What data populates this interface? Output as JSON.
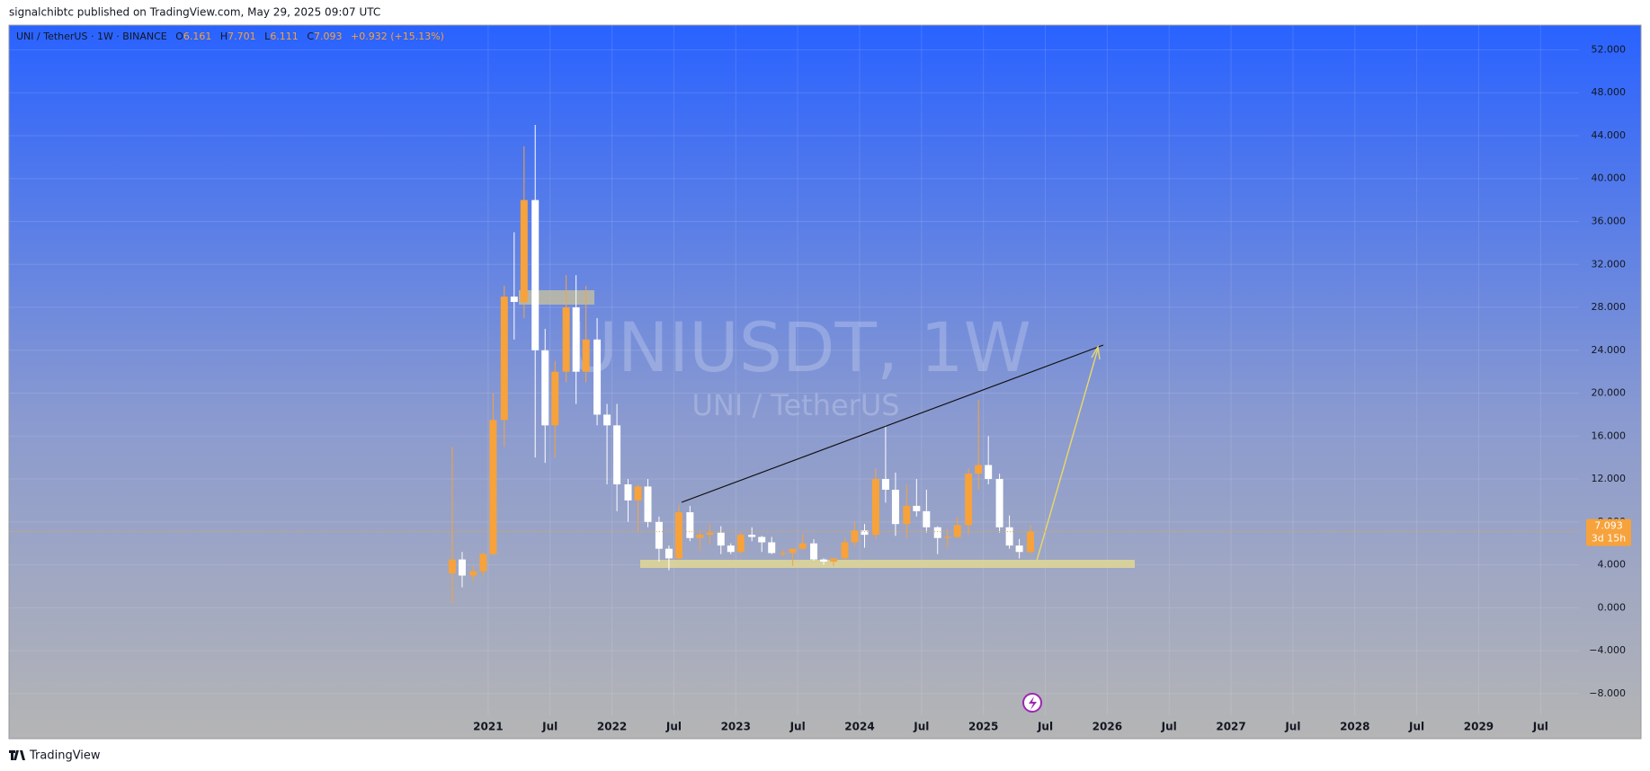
{
  "header": {
    "published": "signalchibtc published on TradingView.com, May 29, 2025 09:07 UTC"
  },
  "legend": {
    "symbol": "UNI / TetherUS · 1W · BINANCE",
    "ohlc": [
      {
        "label": "O",
        "value": "6.161"
      },
      {
        "label": "H",
        "value": "7.701"
      },
      {
        "label": "L",
        "value": "6.111"
      },
      {
        "label": "C",
        "value": "7.093"
      }
    ],
    "change": "+0.932 (+15.13%)"
  },
  "watermark": {
    "ticker": "UNIUSDT, 1W",
    "name": "UNI / TetherUS"
  },
  "price_label": {
    "value": 7.093,
    "label": "7.093",
    "countdown": "3d 15h"
  },
  "footer": {
    "brand": "TradingView"
  },
  "chart_data": {
    "type": "candlestick",
    "up_color": "#f7a23b",
    "down_color": "#ffffff",
    "grid": true,
    "x": [
      2020.71,
      2020.79,
      2020.88,
      2020.96,
      2021.04,
      2021.13,
      2021.21,
      2021.29,
      2021.38,
      2021.46,
      2021.54,
      2021.63,
      2021.71,
      2021.79,
      2021.88,
      2021.96,
      2022.04,
      2022.13,
      2022.21,
      2022.29,
      2022.38,
      2022.46,
      2022.54,
      2022.63,
      2022.71,
      2022.79,
      2022.88,
      2022.96,
      2023.04,
      2023.13,
      2023.21,
      2023.29,
      2023.38,
      2023.46,
      2023.54,
      2023.63,
      2023.71,
      2023.79,
      2023.88,
      2023.96,
      2024.04,
      2024.13,
      2024.21,
      2024.29,
      2024.38,
      2024.46,
      2024.54,
      2024.63,
      2024.71,
      2024.79,
      2024.88,
      2024.96,
      2025.04,
      2025.13,
      2025.21,
      2025.29,
      2025.38
    ],
    "open": [
      3.2,
      4.5,
      3.0,
      3.4,
      5.0,
      17.5,
      29,
      28.5,
      38,
      24,
      17,
      22,
      28,
      22,
      25,
      18,
      17,
      11.5,
      10,
      11.3,
      8,
      5.5,
      4.6,
      8.9,
      6.5,
      6.8,
      7,
      5.8,
      5.2,
      6.8,
      6.6,
      6.1,
      5.1,
      5.1,
      5.5,
      6,
      4.5,
      4.3,
      4.6,
      6.1,
      7.2,
      6.8,
      12,
      11,
      7.8,
      9.5,
      9,
      7.5,
      6.5,
      6.6,
      7.7,
      12.5,
      13.3,
      12,
      7.5,
      5.8,
      5.2
    ],
    "high": [
      15,
      5.2,
      3.9,
      5.2,
      20,
      30,
      35,
      43,
      45,
      26,
      23,
      31,
      31,
      30,
      27,
      19,
      19,
      12,
      11.5,
      12,
      8.5,
      5.8,
      9.6,
      9.5,
      7.2,
      7.8,
      7.6,
      6,
      7,
      7.5,
      6.7,
      6.6,
      5.4,
      5.5,
      6.9,
      6.4,
      4.6,
      4.6,
      6.5,
      8,
      7.8,
      13,
      17,
      12.6,
      11.5,
      12,
      11,
      7.6,
      7.3,
      8.5,
      13,
      19.4,
      16,
      12.5,
      8.6,
      6.4,
      7.7
    ],
    "low": [
      0.4,
      1.9,
      2.5,
      2.9,
      4.9,
      15,
      25,
      27,
      14,
      13.5,
      14,
      21,
      19,
      21,
      17,
      11.5,
      9,
      8,
      7,
      7.5,
      4.3,
      3.5,
      4.5,
      6.2,
      5.3,
      5.9,
      5,
      5,
      5,
      6.2,
      5.2,
      5,
      4.8,
      3.9,
      5.4,
      4.4,
      4,
      3.9,
      4.5,
      5.7,
      5.6,
      6.4,
      9.8,
      6.7,
      6.5,
      8.5,
      7,
      5,
      5.6,
      6.5,
      6.8,
      11,
      11.5,
      7,
      5.5,
      4.6,
      5
    ],
    "close": [
      4.5,
      3.0,
      3.4,
      5.0,
      17.5,
      29,
      28.5,
      38,
      24,
      17,
      22,
      28,
      22,
      25,
      18,
      17,
      11.5,
      10,
      11.3,
      8,
      5.5,
      4.6,
      8.9,
      6.5,
      6.8,
      7,
      5.8,
      5.2,
      6.8,
      6.6,
      6.1,
      5.1,
      5.1,
      5.5,
      6,
      4.5,
      4.3,
      4.6,
      6.1,
      7.2,
      6.8,
      12,
      11,
      7.8,
      9.5,
      9,
      7.5,
      6.5,
      6.6,
      7.7,
      12.5,
      13.3,
      12,
      7.5,
      5.8,
      5.2,
      7.093
    ],
    "xlim": [
      2017.13,
      2029.81
    ],
    "xticks": [
      2021,
      {
        "value": 2021.5,
        "label": "Jul"
      },
      2022,
      {
        "value": 2022.5,
        "label": "Jul"
      },
      2023,
      {
        "value": 2023.5,
        "label": "Jul"
      },
      2024,
      {
        "value": 2024.5,
        "label": "Jul"
      },
      2025,
      {
        "value": 2025.5,
        "label": "Jul"
      },
      2026,
      {
        "value": 2026.5,
        "label": "Jul"
      },
      2027,
      {
        "value": 2027.5,
        "label": "Jul"
      },
      2028,
      {
        "value": 2028.5,
        "label": "Jul"
      },
      2029,
      {
        "value": 2029.5,
        "label": "Jul"
      }
    ],
    "ylim": [
      -12.2,
      54.3
    ],
    "yticks": [
      {
        "value": -8,
        "label": "−8.000"
      },
      {
        "value": -4,
        "label": "−4.000"
      },
      {
        "value": 0,
        "label": "0.000"
      },
      {
        "value": 4,
        "label": "4.000"
      },
      {
        "value": 8,
        "label": "8.000"
      },
      {
        "value": 12,
        "label": "12.000"
      },
      {
        "value": 16,
        "label": "16.000"
      },
      {
        "value": 20,
        "label": "20.000"
      },
      {
        "value": 24,
        "label": "24.000"
      },
      {
        "value": 28,
        "label": "28.000"
      },
      {
        "value": 32,
        "label": "32.000"
      },
      {
        "value": 36,
        "label": "36.000"
      },
      {
        "value": 40,
        "label": "40.000"
      },
      {
        "value": 44,
        "label": "44.000"
      },
      {
        "value": 48,
        "label": "48.000"
      },
      {
        "value": 52,
        "label": "52.000"
      }
    ]
  }
}
